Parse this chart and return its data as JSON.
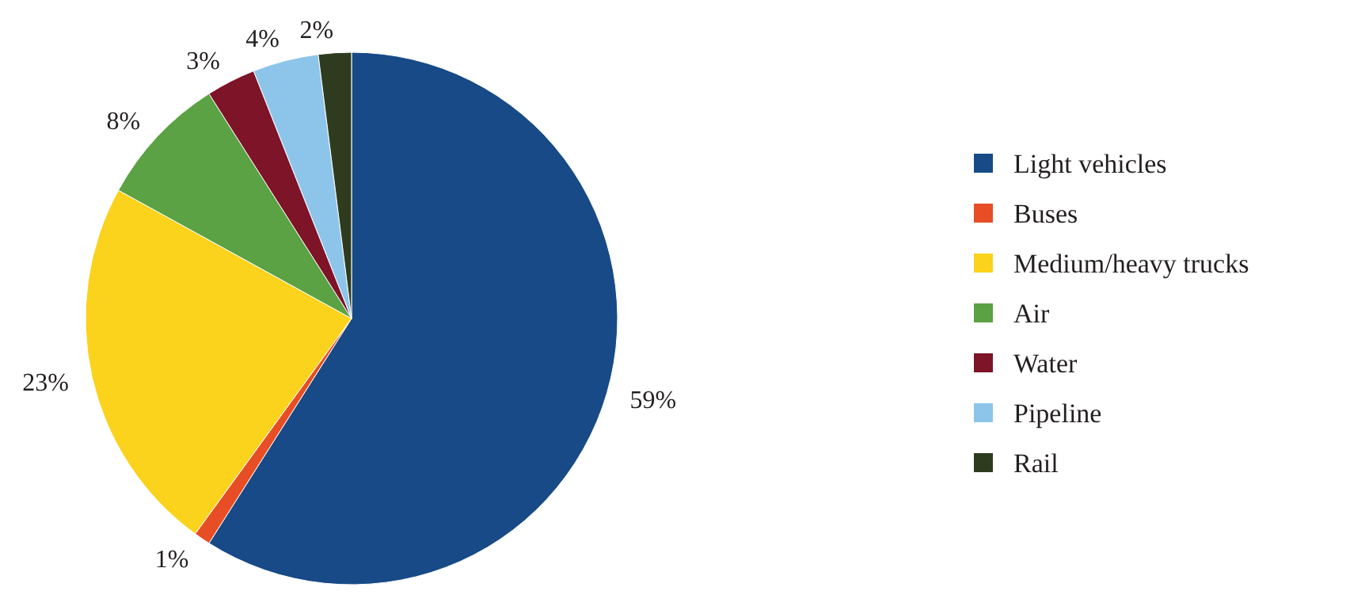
{
  "chart_data": {
    "type": "pie",
    "categories": [
      "Light vehicles",
      "Buses",
      "Medium/heavy trucks",
      "Air",
      "Water",
      "Pipeline",
      "Rail"
    ],
    "values": [
      59,
      1,
      23,
      8,
      3,
      4,
      2
    ],
    "colors": [
      "#174a86",
      "#e84e26",
      "#fbd21c",
      "#5aa243",
      "#7d1428",
      "#8dc5ea",
      "#2f3b1e"
    ],
    "value_labels": [
      "59%",
      "1%",
      "23%",
      "8%",
      "3%",
      "4%",
      "2%"
    ],
    "legend": "right"
  }
}
